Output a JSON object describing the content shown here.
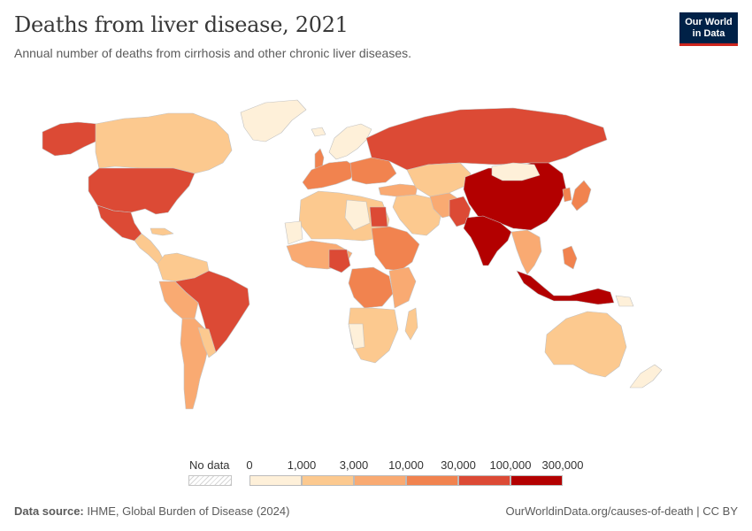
{
  "header": {
    "title": "Deaths from liver disease, 2021",
    "subtitle": "Annual number of deaths from cirrhosis and other chronic liver diseases.",
    "logo_line1": "Our World",
    "logo_line2": "in Data"
  },
  "colors": {
    "bin0": "#fef0d9",
    "bin1": "#fcc98f",
    "bin2": "#f9aa72",
    "bin3": "#f1834f",
    "bin4": "#dc4a35",
    "bin5": "#b30000",
    "no_data": "#ffffff",
    "border": "#c2c2c2"
  },
  "legend": {
    "no_data_label": "No data",
    "ticks": [
      "0",
      "1,000",
      "3,000",
      "10,000",
      "30,000",
      "100,000",
      "300,000"
    ]
  },
  "footer": {
    "source_label": "Data source:",
    "source_text": "IHME, Global Burden of Disease (2024)",
    "url": "OurWorldinData.org/causes-of-death | CC BY"
  }
}
